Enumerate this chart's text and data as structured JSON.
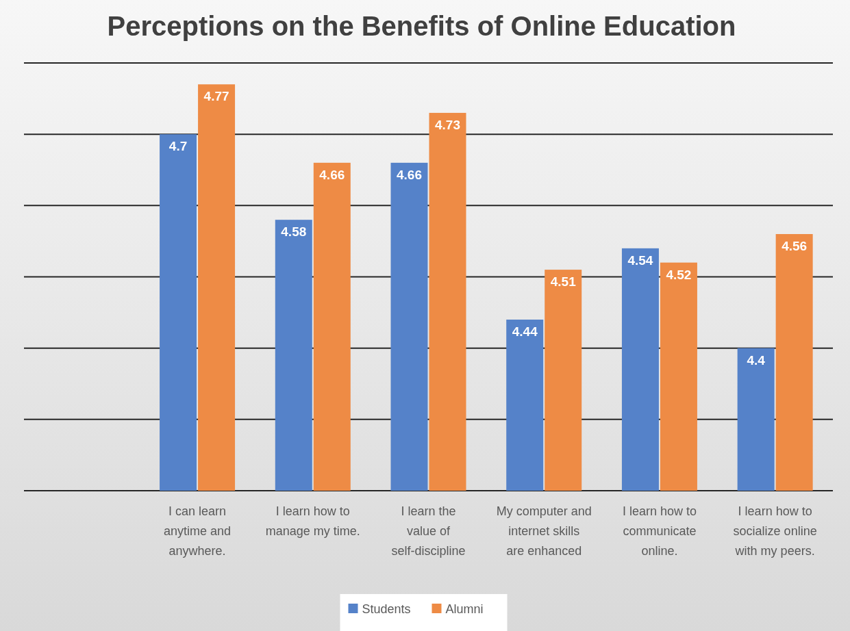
{
  "chart_data": {
    "type": "bar",
    "title": "Perceptions on the Benefits of Online Education",
    "categories": [
      null,
      "I can learn anytime and anywhere.",
      "I learn how to manage my time.",
      "I learn the value of self-discipline",
      "My computer and internet skills are enhanced",
      "I learn how to communicate online.",
      "I learn how to socialize online with my peers."
    ],
    "series": [
      {
        "name": "Students",
        "color": "#5582c9",
        "values": [
          null,
          4.7,
          4.58,
          4.66,
          4.44,
          4.54,
          4.4
        ]
      },
      {
        "name": "Alumni",
        "color": "#ee8b45",
        "values": [
          null,
          4.77,
          4.66,
          4.73,
          4.51,
          4.52,
          4.56
        ]
      }
    ],
    "ylim": [
      4.2,
      4.8
    ],
    "yticks": [
      {
        "value": 4.2,
        "label": null
      },
      {
        "value": 4.3,
        "label": null
      },
      {
        "value": 4.4,
        "label": null
      },
      {
        "value": 4.5,
        "label": null
      },
      {
        "value": 4.6,
        "label": null
      },
      {
        "value": 4.7,
        "label": null
      },
      {
        "value": 4.8,
        "label": null
      }
    ],
    "tick_labels": "x",
    "grid": "y",
    "data_labels": true,
    "legend": "bottom"
  }
}
